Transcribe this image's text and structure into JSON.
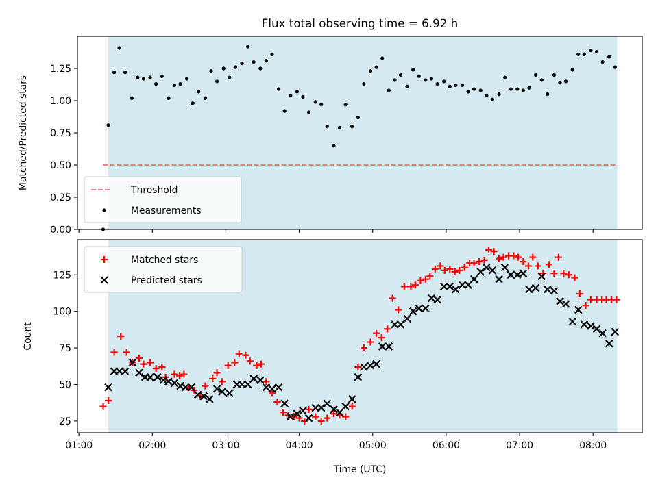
{
  "chart_data": {
    "title": "Flux total observing time = 6.92 h",
    "xlabel": "Time (UTC)",
    "x_ticks": [
      "01:00",
      "02:00",
      "03:00",
      "04:00",
      "05:00",
      "06:00",
      "07:00",
      "08:00"
    ],
    "x_tick_hours": [
      1,
      2,
      3,
      4,
      5,
      6,
      7,
      8
    ],
    "xlim": [
      0.98,
      8.67
    ],
    "shaded_span": [
      1.4,
      8.33
    ],
    "shade_color": "#d4eaf0",
    "panels": [
      {
        "type": "scatter",
        "ylabel": "Matched/Predicted stars",
        "ylim": [
          0.0,
          1.5
        ],
        "y_ticks": [
          "0.00",
          "0.25",
          "0.50",
          "0.75",
          "1.00",
          "1.25"
        ],
        "y_tick_values": [
          0.0,
          0.25,
          0.5,
          0.75,
          1.0,
          1.25
        ],
        "legend": [
          "Threshold",
          "Measurements"
        ],
        "legend_position": "lower-left",
        "threshold": {
          "y": 0.5,
          "x_start": 1.33,
          "x_end": 8.33,
          "color": "#f07d7d"
        },
        "series": [
          {
            "name": "Measurements",
            "color": "#000000",
            "marker": "dot",
            "x": [
              1.33,
              1.4,
              1.48,
              1.55,
              1.63,
              1.72,
              1.8,
              1.88,
              1.97,
              2.05,
              2.13,
              2.22,
              2.3,
              2.38,
              2.47,
              2.55,
              2.63,
              2.72,
              2.8,
              2.88,
              2.97,
              3.05,
              3.13,
              3.22,
              3.3,
              3.38,
              3.47,
              3.55,
              3.63,
              3.72,
              3.8,
              3.88,
              3.97,
              4.05,
              4.13,
              4.22,
              4.3,
              4.38,
              4.47,
              4.55,
              4.63,
              4.72,
              4.8,
              4.88,
              4.97,
              5.05,
              5.13,
              5.22,
              5.3,
              5.38,
              5.47,
              5.55,
              5.63,
              5.72,
              5.8,
              5.88,
              5.97,
              6.05,
              6.13,
              6.22,
              6.3,
              6.38,
              6.47,
              6.55,
              6.63,
              6.72,
              6.8,
              6.88,
              6.97,
              7.05,
              7.13,
              7.22,
              7.3,
              7.38,
              7.47,
              7.55,
              7.63,
              7.72,
              7.8,
              7.88,
              7.97,
              8.05,
              8.13,
              8.22,
              8.3
            ],
            "y": [
              0.0,
              0.81,
              1.22,
              1.41,
              1.22,
              1.02,
              1.18,
              1.17,
              1.18,
              1.13,
              1.19,
              1.02,
              1.12,
              1.13,
              1.17,
              0.98,
              1.07,
              1.02,
              1.23,
              1.15,
              1.25,
              1.18,
              1.26,
              1.29,
              1.42,
              1.3,
              1.25,
              1.31,
              1.36,
              1.09,
              0.92,
              1.04,
              1.07,
              1.03,
              0.91,
              0.99,
              0.97,
              0.8,
              0.65,
              0.79,
              0.97,
              0.8,
              0.87,
              1.13,
              1.23,
              1.26,
              1.33,
              1.08,
              1.16,
              1.2,
              1.11,
              1.24,
              1.19,
              1.16,
              1.17,
              1.13,
              1.15,
              1.11,
              1.12,
              1.12,
              1.07,
              1.09,
              1.08,
              1.04,
              1.01,
              1.05,
              1.18,
              1.09,
              1.09,
              1.08,
              1.1,
              1.2,
              1.16,
              1.05,
              1.2,
              1.14,
              1.15,
              1.24,
              1.36,
              1.36,
              1.39,
              1.38,
              1.3,
              1.34,
              1.26
            ]
          }
        ]
      },
      {
        "type": "scatter",
        "ylabel": "Count",
        "ylim": [
          17,
          149
        ],
        "y_ticks": [
          "25",
          "50",
          "75",
          "100",
          "125"
        ],
        "y_tick_values": [
          25,
          50,
          75,
          100,
          125
        ],
        "legend": [
          "Matched stars",
          "Predicted stars"
        ],
        "legend_position": "top-left",
        "series": [
          {
            "name": "Matched stars",
            "color": "#ff0000",
            "marker": "plus",
            "x": [
              1.33,
              1.4,
              1.48,
              1.57,
              1.65,
              1.73,
              1.82,
              1.88,
              1.97,
              2.05,
              2.13,
              2.18,
              2.3,
              2.37,
              2.43,
              2.5,
              2.57,
              2.65,
              2.72,
              2.82,
              2.88,
              2.95,
              3.03,
              3.12,
              3.18,
              3.27,
              3.33,
              3.42,
              3.48,
              3.55,
              3.63,
              3.7,
              3.78,
              3.85,
              3.93,
              4.0,
              4.07,
              4.13,
              4.22,
              4.3,
              4.38,
              4.47,
              4.55,
              4.63,
              4.72,
              4.8,
              4.88,
              4.97,
              5.05,
              5.12,
              5.2,
              5.27,
              5.35,
              5.43,
              5.52,
              5.58,
              5.65,
              5.72,
              5.78,
              5.85,
              5.92,
              5.98,
              6.05,
              6.12,
              6.18,
              6.25,
              6.32,
              6.38,
              6.45,
              6.52,
              6.58,
              6.65,
              6.72,
              6.78,
              6.85,
              6.92,
              6.98,
              7.05,
              7.12,
              7.18,
              7.25,
              7.32,
              7.4,
              7.47,
              7.53,
              7.6,
              7.67,
              7.75,
              7.82,
              7.9,
              7.97,
              8.05,
              8.12,
              8.18,
              8.25,
              8.32
            ],
            "y": [
              35,
              39,
              72,
              83,
              72,
              65,
              68,
              64,
              65,
              61,
              62,
              55,
              57,
              56,
              57,
              48,
              46,
              42,
              49,
              54,
              58,
              52,
              63,
              65,
              71,
              70,
              66,
              63,
              64,
              52,
              44,
              38,
              31,
              29,
              28,
              27,
              25,
              33,
              28,
              25,
              27,
              30,
              29,
              28,
              35,
              62,
              75,
              79,
              85,
              82,
              88,
              109,
              101,
              117,
              117,
              118,
              121,
              122,
              124,
              129,
              131,
              128,
              129,
              127,
              128,
              130,
              133,
              133,
              134,
              135,
              142,
              141,
              136,
              137,
              138,
              138,
              137,
              134,
              131,
              137,
              131,
              126,
              132,
              126,
              137,
              126,
              125,
              123,
              112,
              104,
              108,
              108,
              108,
              108,
              108,
              108
            ]
          },
          {
            "name": "Predicted stars",
            "color": "#000000",
            "marker": "x",
            "x": [
              1.4,
              1.48,
              1.55,
              1.63,
              1.73,
              1.82,
              1.9,
              1.97,
              2.07,
              2.15,
              2.22,
              2.3,
              2.38,
              2.45,
              2.53,
              2.62,
              2.7,
              2.78,
              2.88,
              2.95,
              3.05,
              3.15,
              3.22,
              3.3,
              3.38,
              3.47,
              3.55,
              3.63,
              3.72,
              3.8,
              3.88,
              3.97,
              4.05,
              4.13,
              4.22,
              4.3,
              4.38,
              4.47,
              4.55,
              4.63,
              4.72,
              4.8,
              4.88,
              4.97,
              5.05,
              5.13,
              5.22,
              5.3,
              5.38,
              5.47,
              5.55,
              5.63,
              5.72,
              5.8,
              5.88,
              5.97,
              6.05,
              6.13,
              6.22,
              6.3,
              6.38,
              6.47,
              6.55,
              6.63,
              6.72,
              6.8,
              6.88,
              6.97,
              7.05,
              7.13,
              7.22,
              7.3,
              7.38,
              7.47,
              7.55,
              7.63,
              7.72,
              7.8,
              7.88,
              7.97,
              8.05,
              8.13,
              8.22,
              8.3
            ],
            "y": [
              48,
              59,
              59,
              59,
              65,
              58,
              55,
              55,
              55,
              53,
              52,
              51,
              49,
              48,
              48,
              43,
              42,
              40,
              47,
              45,
              44,
              50,
              50,
              50,
              54,
              53,
              48,
              47,
              48,
              37,
              28,
              30,
              32,
              27,
              34,
              34,
              37,
              33,
              31,
              35,
              40,
              55,
              62,
              63,
              64,
              76,
              76,
              91,
              91,
              95,
              100,
              102,
              102,
              109,
              108,
              117,
              117,
              115,
              118,
              118,
              122,
              127,
              130,
              128,
              122,
              130,
              125,
              125,
              126,
              115,
              116,
              124,
              115,
              114,
              107,
              105,
              93,
              101,
              91,
              90,
              88,
              85,
              78,
              86
            ]
          }
        ]
      }
    ]
  }
}
